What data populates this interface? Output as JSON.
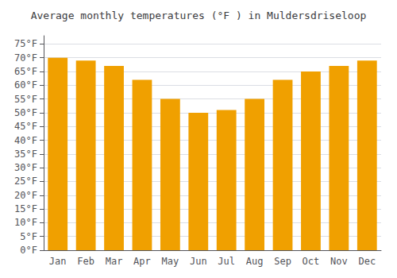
{
  "chart_data": {
    "type": "bar",
    "title": "Average monthly temperatures (°F ) in Muldersdriseloop",
    "categories": [
      "Jan",
      "Feb",
      "Mar",
      "Apr",
      "May",
      "Jun",
      "Jul",
      "Aug",
      "Sep",
      "Oct",
      "Nov",
      "Dec"
    ],
    "values": [
      70,
      69,
      67,
      62,
      55,
      50,
      51,
      55,
      62,
      65,
      67,
      69
    ],
    "color": "#F0A000",
    "ylim": [
      0,
      78
    ],
    "yticks": [
      {
        "value": 0,
        "label": "0°F"
      },
      {
        "value": 5,
        "label": "5°F"
      },
      {
        "value": 10,
        "label": "10°F"
      },
      {
        "value": 15,
        "label": "15°F"
      },
      {
        "value": 20,
        "label": "20°F"
      },
      {
        "value": 25,
        "label": "25°F"
      },
      {
        "value": 30,
        "label": "30°F"
      },
      {
        "value": 35,
        "label": "35°F"
      },
      {
        "value": 40,
        "label": "40°F"
      },
      {
        "value": 45,
        "label": "45°F"
      },
      {
        "value": 50,
        "label": "50°F"
      },
      {
        "value": 55,
        "label": "55°F"
      },
      {
        "value": 60,
        "label": "60°F"
      },
      {
        "value": 65,
        "label": "65°F"
      },
      {
        "value": 70,
        "label": "70°F"
      },
      {
        "value": 75,
        "label": "75°F"
      }
    ],
    "grid": true
  }
}
